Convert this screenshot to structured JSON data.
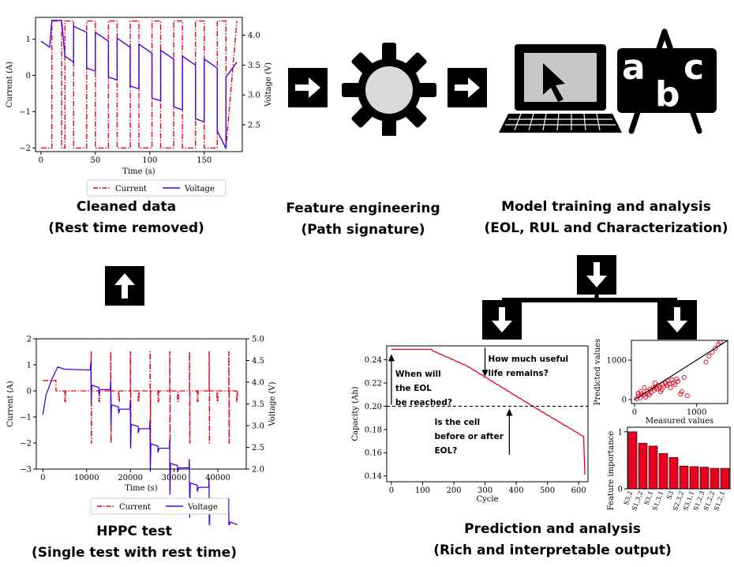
{
  "panels": {
    "cleaned": {
      "title": "Cleaned data",
      "subtitle": "(Rest time removed)"
    },
    "feature": {
      "title": "Feature engineering",
      "subtitle": "(Path signature)"
    },
    "model": {
      "title": "Model training and analysis",
      "subtitle": "(EOL, RUL and Characterization)"
    },
    "hppc": {
      "title": "HPPC test",
      "subtitle": "(Single test with rest time)"
    },
    "prediction": {
      "title": "Prediction and analysis",
      "subtitle": "(Rich and interpretable output)"
    }
  },
  "abc": {
    "a": "a",
    "b": "b",
    "c": "c"
  },
  "chart_data": [
    {
      "id": "cleaned-plot",
      "type": "line",
      "xlabel": "Time (s)",
      "ylabel": "Current (A)",
      "y2label": "Voltage (V)",
      "xlim": [
        -5,
        185
      ],
      "ylim": [
        -2.1,
        1.6
      ],
      "y2lim": [
        2.05,
        4.3
      ],
      "xticks": [
        "0",
        "50",
        "100",
        "150"
      ],
      "yticks": [
        "1",
        "0",
        "−1",
        "−2"
      ],
      "y2ticks": [
        "4.0",
        "3.5",
        "3.0",
        "2.5"
      ],
      "legend": [
        "Current",
        "Voltage"
      ],
      "legend_position": "below",
      "series_colors": {
        "current": "#e8001c",
        "voltage": "#4a00e0"
      }
    },
    {
      "id": "hppc-plot",
      "type": "line",
      "xlabel": "Time (s)",
      "ylabel": "Current (A)",
      "y2label": "Voltage (V)",
      "xlim": [
        -1500,
        46500
      ],
      "ylim": [
        -3,
        2
      ],
      "y2lim": [
        2.0,
        5.0
      ],
      "xticks": [
        "0",
        "10000",
        "20000",
        "30000",
        "40000"
      ],
      "yticks": [
        "2",
        "1",
        "0",
        "−1",
        "−2",
        "−3"
      ],
      "y2ticks": [
        "5.0",
        "4.5",
        "4.0",
        "3.5",
        "3.0",
        "2.5",
        "2.0"
      ],
      "legend": [
        "Current",
        "Voltage"
      ],
      "legend_position": "below",
      "series_colors": {
        "current": "#e8001c",
        "voltage": "#4a00e0"
      }
    },
    {
      "id": "capacity-plot",
      "type": "line",
      "xlabel": "Cycle",
      "ylabel": "Capacity (Ah)",
      "xlim": [
        -15,
        630
      ],
      "ylim": [
        0.135,
        0.252
      ],
      "xticks": [
        "0",
        "100",
        "200",
        "300",
        "400",
        "500",
        "600"
      ],
      "yticks": [
        "0.24",
        "0.22",
        "0.20",
        "0.18",
        "0.16",
        "0.14"
      ],
      "threshold": 0.2,
      "eol_cycle": 378,
      "annotations": {
        "eol_question": [
          "When will",
          "the EOL",
          "be reached?"
        ],
        "rul_question": [
          "How much useful",
          "life remains?"
        ],
        "cell_question": [
          "Is the cell",
          "before or after",
          "EOL?"
        ]
      },
      "series_color": "#e8001c"
    },
    {
      "id": "scatter-plot",
      "type": "scatter",
      "xlabel": "Measured values",
      "ylabel": "Predicted values",
      "xlim": [
        -50,
        1500
      ],
      "ylim": [
        -100,
        1500
      ],
      "xticks": [
        "0",
        "1000"
      ],
      "yticks": [
        "1000",
        "0"
      ],
      "points": [
        [
          30,
          20
        ],
        [
          60,
          90
        ],
        [
          90,
          40
        ],
        [
          120,
          150
        ],
        [
          150,
          110
        ],
        [
          180,
          60
        ],
        [
          200,
          210
        ],
        [
          220,
          160
        ],
        [
          250,
          260
        ],
        [
          270,
          180
        ],
        [
          300,
          300
        ],
        [
          320,
          240
        ],
        [
          340,
          320
        ],
        [
          360,
          270
        ],
        [
          380,
          360
        ],
        [
          400,
          300
        ],
        [
          420,
          200
        ],
        [
          450,
          380
        ],
        [
          470,
          330
        ],
        [
          500,
          420
        ],
        [
          520,
          360
        ],
        [
          540,
          470
        ],
        [
          560,
          400
        ],
        [
          580,
          300
        ],
        [
          600,
          500
        ],
        [
          620,
          420
        ],
        [
          650,
          380
        ],
        [
          680,
          520
        ],
        [
          700,
          460
        ],
        [
          740,
          140
        ],
        [
          760,
          200
        ],
        [
          800,
          560
        ],
        [
          850,
          100
        ],
        [
          1200,
          1100
        ],
        [
          1250,
          1200
        ],
        [
          1300,
          1300
        ],
        [
          1350,
          1400
        ],
        [
          1380,
          1450
        ],
        [
          1150,
          950
        ],
        [
          100,
          200
        ],
        [
          240,
          120
        ],
        [
          440,
          250
        ],
        [
          160,
          300
        ],
        [
          60,
          160
        ],
        [
          330,
          420
        ]
      ],
      "fit_line": [
        [
          0,
          0
        ],
        [
          1500,
          1500
        ]
      ],
      "marker_color": "#e8001c"
    },
    {
      "id": "importance-plot",
      "type": "bar",
      "ylabel": "Feature importance",
      "ylim": [
        0,
        1.08
      ],
      "yticks": [
        "1",
        "0"
      ],
      "categories": [
        "S3,2",
        "S1,3,2",
        "S3,1",
        "S1,3,1",
        "S3",
        "S2,3,2",
        "S3,1,1",
        "S1,2,3",
        "S1,2,2",
        "S1,2,1"
      ],
      "values": [
        1.0,
        0.8,
        0.75,
        0.62,
        0.55,
        0.4,
        0.39,
        0.38,
        0.36,
        0.36
      ],
      "bar_color": "#e8001c"
    }
  ]
}
